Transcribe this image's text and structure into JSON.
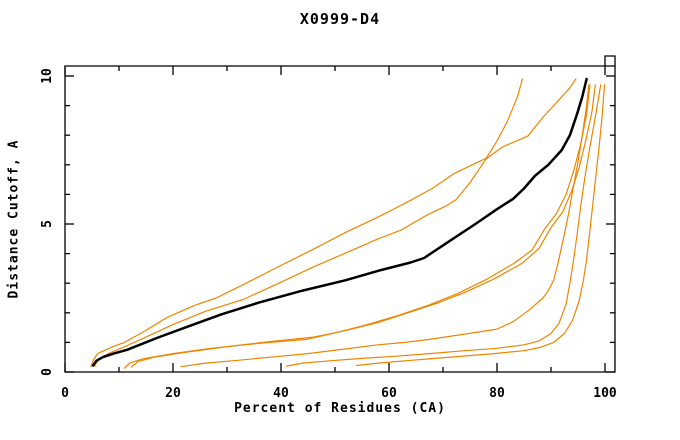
{
  "title": "X0999-D4",
  "chart_data": {
    "type": "line",
    "title": "X0999-D4",
    "xlabel": "Percent of Residues (CA)",
    "ylabel": "Distance Cutoff, A",
    "xlim": [
      0,
      101.8
    ],
    "ylim": [
      0,
      10.35
    ],
    "x_major_ticks": [
      0,
      20,
      40,
      60,
      80,
      100
    ],
    "x_minor_ticks": [
      10,
      30,
      50,
      70,
      90
    ],
    "y_major_ticks": [
      0,
      5,
      10
    ],
    "y_minor_ticks": [
      1,
      2,
      3,
      4,
      6,
      7,
      8,
      9
    ],
    "grid": false,
    "legend": "none",
    "colors": {
      "main": "#000000",
      "models": "#ee8500",
      "frame": "#000000",
      "background": "#ffffff"
    },
    "series": [
      {
        "name": "main",
        "color": "#000000",
        "width": 2.5,
        "points": [
          [
            5.2,
            0.22
          ],
          [
            5.8,
            0.38
          ],
          [
            7,
            0.5
          ],
          [
            9,
            0.62
          ],
          [
            11.5,
            0.75
          ],
          [
            17,
            1.15
          ],
          [
            23,
            1.55
          ],
          [
            29,
            1.95
          ],
          [
            36,
            2.35
          ],
          [
            44,
            2.75
          ],
          [
            52,
            3.1
          ],
          [
            58,
            3.42
          ],
          [
            64,
            3.7
          ],
          [
            66.5,
            3.85
          ],
          [
            71,
            4.4
          ],
          [
            76,
            5.0
          ],
          [
            80,
            5.5
          ],
          [
            83,
            5.85
          ],
          [
            85,
            6.2
          ],
          [
            87,
            6.62
          ],
          [
            89.5,
            7.0
          ],
          [
            92,
            7.5
          ],
          [
            93.5,
            8.0
          ],
          [
            94.8,
            8.7
          ],
          [
            95.8,
            9.3
          ],
          [
            96.6,
            9.9
          ]
        ]
      },
      {
        "name": "model-1",
        "color": "#ee8500",
        "width": 1.2,
        "points": [
          [
            4.8,
            0.18
          ],
          [
            5.3,
            0.42
          ],
          [
            6.1,
            0.63
          ],
          [
            8.8,
            0.85
          ],
          [
            11,
            1.0
          ],
          [
            14,
            1.3
          ],
          [
            19,
            1.85
          ],
          [
            24,
            2.25
          ],
          [
            28,
            2.5
          ],
          [
            33,
            2.95
          ],
          [
            40,
            3.6
          ],
          [
            46,
            4.15
          ],
          [
            52,
            4.72
          ],
          [
            57,
            5.15
          ],
          [
            60,
            5.42
          ],
          [
            64,
            5.8
          ],
          [
            68,
            6.2
          ],
          [
            72,
            6.7
          ],
          [
            76,
            7.05
          ],
          [
            78,
            7.22
          ],
          [
            80,
            7.8
          ],
          [
            82,
            8.5
          ],
          [
            83.8,
            9.3
          ],
          [
            84.7,
            9.9
          ]
        ]
      },
      {
        "name": "model-2",
        "color": "#ee8500",
        "width": 1.2,
        "points": [
          [
            5.5,
            0.2
          ],
          [
            6.3,
            0.45
          ],
          [
            8,
            0.62
          ],
          [
            11,
            0.85
          ],
          [
            15,
            1.18
          ],
          [
            20,
            1.6
          ],
          [
            26,
            2.05
          ],
          [
            33,
            2.45
          ],
          [
            39,
            2.95
          ],
          [
            46,
            3.55
          ],
          [
            53,
            4.1
          ],
          [
            58,
            4.5
          ],
          [
            62.3,
            4.8
          ],
          [
            67,
            5.3
          ],
          [
            70.5,
            5.6
          ],
          [
            72.4,
            5.82
          ],
          [
            75,
            6.4
          ],
          [
            78,
            7.2
          ],
          [
            81,
            7.6
          ],
          [
            85.7,
            7.97
          ],
          [
            88.5,
            8.6
          ],
          [
            91.5,
            9.2
          ],
          [
            93.5,
            9.6
          ],
          [
            94.6,
            9.9
          ]
        ]
      },
      {
        "name": "model-3",
        "color": "#ee8500",
        "width": 1.2,
        "points": [
          [
            11,
            0.13
          ],
          [
            12,
            0.3
          ],
          [
            14.5,
            0.45
          ],
          [
            20,
            0.62
          ],
          [
            27,
            0.8
          ],
          [
            36,
            0.97
          ],
          [
            44.7,
            1.1
          ],
          [
            50,
            1.32
          ],
          [
            56,
            1.6
          ],
          [
            62,
            1.93
          ],
          [
            67.5,
            2.27
          ],
          [
            72.7,
            2.65
          ],
          [
            78,
            3.12
          ],
          [
            83.2,
            3.68
          ],
          [
            86.5,
            4.12
          ],
          [
            88.7,
            4.8
          ],
          [
            91,
            5.35
          ],
          [
            92.8,
            6.0
          ],
          [
            94.2,
            6.8
          ],
          [
            95.5,
            7.7
          ],
          [
            96.6,
            8.7
          ],
          [
            97.2,
            9.7
          ]
        ]
      },
      {
        "name": "model-4",
        "color": "#ee8500",
        "width": 1.2,
        "points": [
          [
            12.3,
            0.17
          ],
          [
            13.5,
            0.35
          ],
          [
            16.5,
            0.5
          ],
          [
            22,
            0.66
          ],
          [
            29,
            0.83
          ],
          [
            37.5,
            1.02
          ],
          [
            46,
            1.18
          ],
          [
            51.5,
            1.38
          ],
          [
            57.5,
            1.65
          ],
          [
            63.5,
            2.0
          ],
          [
            69,
            2.33
          ],
          [
            74.2,
            2.7
          ],
          [
            79.5,
            3.15
          ],
          [
            84.7,
            3.68
          ],
          [
            87.8,
            4.18
          ],
          [
            90,
            4.88
          ],
          [
            92.2,
            5.42
          ],
          [
            93.8,
            6.1
          ],
          [
            95.2,
            6.9
          ],
          [
            96.4,
            7.8
          ],
          [
            97.6,
            8.8
          ],
          [
            98.2,
            9.7
          ]
        ]
      },
      {
        "name": "model-5",
        "color": "#ee8500",
        "width": 1.2,
        "points": [
          [
            21.5,
            0.18
          ],
          [
            26,
            0.3
          ],
          [
            32.3,
            0.4
          ],
          [
            38,
            0.5
          ],
          [
            45,
            0.62
          ],
          [
            52,
            0.78
          ],
          [
            58,
            0.92
          ],
          [
            63,
            1.0
          ],
          [
            67.5,
            1.1
          ],
          [
            74,
            1.28
          ],
          [
            80,
            1.45
          ],
          [
            83,
            1.7
          ],
          [
            86,
            2.1
          ],
          [
            88.5,
            2.5
          ],
          [
            89.4,
            2.72
          ],
          [
            90.5,
            3.1
          ],
          [
            91.3,
            3.68
          ],
          [
            92.3,
            4.5
          ],
          [
            93.2,
            5.3
          ],
          [
            94,
            6.1
          ],
          [
            94.9,
            7.0
          ],
          [
            95.8,
            8.0
          ],
          [
            96.6,
            9.0
          ],
          [
            97.0,
            9.7
          ]
        ]
      },
      {
        "name": "model-6",
        "color": "#ee8500",
        "width": 1.2,
        "points": [
          [
            41,
            0.2
          ],
          [
            44,
            0.3
          ],
          [
            49,
            0.38
          ],
          [
            55,
            0.46
          ],
          [
            61,
            0.53
          ],
          [
            67.5,
            0.62
          ],
          [
            74,
            0.72
          ],
          [
            80,
            0.8
          ],
          [
            85,
            0.92
          ],
          [
            87.8,
            1.05
          ],
          [
            90,
            1.3
          ],
          [
            91.5,
            1.65
          ],
          [
            92.8,
            2.3
          ],
          [
            93.6,
            3.1
          ],
          [
            94.1,
            3.68
          ],
          [
            94.8,
            4.6
          ],
          [
            95.5,
            5.6
          ],
          [
            96.3,
            6.6
          ],
          [
            97.2,
            7.6
          ],
          [
            98.3,
            8.7
          ],
          [
            99.2,
            9.7
          ]
        ]
      },
      {
        "name": "model-7",
        "color": "#ee8500",
        "width": 1.2,
        "points": [
          [
            54,
            0.22
          ],
          [
            58,
            0.3
          ],
          [
            63,
            0.38
          ],
          [
            68.5,
            0.46
          ],
          [
            74,
            0.54
          ],
          [
            79.5,
            0.62
          ],
          [
            85,
            0.72
          ],
          [
            88,
            0.83
          ],
          [
            90.5,
            1.0
          ],
          [
            92.5,
            1.3
          ],
          [
            94,
            1.75
          ],
          [
            95.2,
            2.4
          ],
          [
            96,
            3.1
          ],
          [
            96.5,
            3.68
          ],
          [
            97.1,
            4.6
          ],
          [
            97.7,
            5.6
          ],
          [
            98.3,
            6.6
          ],
          [
            98.9,
            7.6
          ],
          [
            99.5,
            8.7
          ],
          [
            99.9,
            9.7
          ]
        ]
      }
    ]
  }
}
